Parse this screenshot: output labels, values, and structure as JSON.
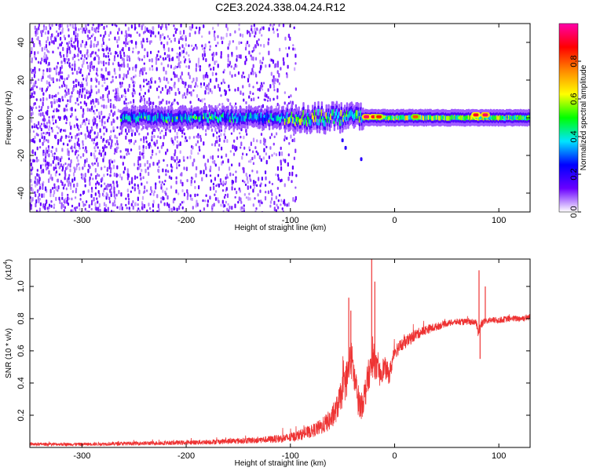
{
  "title": "C2E3.2024.338.04.24.R12",
  "chart_data": [
    {
      "type": "heatmap",
      "xlabel": "Height of straight line (km)",
      "ylabel": "Frequency (Hz)",
      "xlim": [
        -350,
        130
      ],
      "ylim": [
        -50,
        50
      ],
      "x_ticks": [
        -300,
        -200,
        -100,
        0,
        100
      ],
      "x_tick_labels": [
        "-300",
        "-200",
        "-100",
        "0",
        "100"
      ],
      "y_ticks": [
        -40,
        -20,
        0,
        20,
        40
      ],
      "y_tick_labels": [
        "-40",
        "-20",
        "0",
        "20",
        "40"
      ],
      "colorbar": {
        "label": "Normalized spectral amplitude",
        "range": [
          0,
          1
        ],
        "ticks": [
          0.0,
          0.2,
          0.4,
          0.6,
          0.8
        ],
        "tick_labels": [
          "0.0",
          "0.2",
          "0.4",
          "0.6",
          "0.8"
        ],
        "colormap": [
          "#ffffff",
          "#6a00ff",
          "#0000ff",
          "#00e5ff",
          "#00ff00",
          "#ffff00",
          "#ff8800",
          "#ff0000",
          "#ff00aa"
        ]
      },
      "features": {
        "scatter_region_x": [
          -350,
          -105
        ],
        "scatter_density": [
          0.9,
          0.4
        ],
        "signal_band_center_hz": 0,
        "signal_band_start_x": -262,
        "band_segments": [
          {
            "x0": -262,
            "x1": -105,
            "intensity": 0.35,
            "width_hz": 3.5,
            "jitter_hz": 1.5
          },
          {
            "x0": -105,
            "x1": -30,
            "intensity": 0.5,
            "width_hz": 4.0,
            "jitter_hz": 3
          },
          {
            "x0": -30,
            "x1": 130,
            "intensity": 0.55,
            "width_hz": 3.0,
            "jitter_hz": 0.3
          }
        ],
        "hot_spots": [
          {
            "x": -27,
            "y": 0.5,
            "v": 0.95
          },
          {
            "x": -20,
            "y": 0.5,
            "v": 0.9
          },
          {
            "x": -15,
            "y": 0.5,
            "v": 0.85
          },
          {
            "x": 20,
            "y": 0.5,
            "v": 0.8
          },
          {
            "x": 78,
            "y": 1.5,
            "v": 0.9
          },
          {
            "x": 87,
            "y": 1.5,
            "v": 0.95
          }
        ],
        "tail_points": [
          {
            "x": -50,
            "y": -12
          },
          {
            "x": -47,
            "y": -16
          },
          {
            "x": -32,
            "y": -22
          }
        ]
      }
    },
    {
      "type": "line",
      "xlabel": "Height of straight line (km)",
      "ylabel": "SNR (10 * v/v)",
      "y_multiplier_label": "(x10",
      "y_multiplier_exp": "4",
      "xlim": [
        -350,
        130
      ],
      "ylim": [
        0,
        1.17
      ],
      "x_ticks": [
        -300,
        -200,
        -100,
        0,
        100
      ],
      "x_tick_labels": [
        "-300",
        "-200",
        "-100",
        "0",
        "100"
      ],
      "y_ticks": [
        0.2,
        0.4,
        0.6,
        0.8,
        1.0
      ],
      "y_tick_labels": [
        "0.2",
        "0.4",
        "0.6",
        "0.8",
        "1.0"
      ],
      "series": [
        {
          "color": "#ee3333",
          "x": [
            -350,
            -300,
            -250,
            -200,
            -150,
            -120,
            -100,
            -80,
            -70,
            -60,
            -55,
            -50,
            -45,
            -42,
            -40,
            -38,
            -35,
            -32,
            -28,
            -25,
            -22,
            -20,
            -18,
            -15,
            -10,
            -5,
            0,
            10,
            20,
            30,
            40,
            50,
            60,
            70,
            78,
            80,
            83,
            86,
            90,
            100,
            110,
            120,
            130
          ],
          "y": [
            0.02,
            0.02,
            0.025,
            0.03,
            0.04,
            0.05,
            0.06,
            0.1,
            0.13,
            0.18,
            0.25,
            0.35,
            0.45,
            0.55,
            0.5,
            0.4,
            0.3,
            0.25,
            0.35,
            0.45,
            0.5,
            0.55,
            0.5,
            0.45,
            0.5,
            0.45,
            0.6,
            0.65,
            0.7,
            0.73,
            0.75,
            0.77,
            0.78,
            0.78,
            0.78,
            0.72,
            0.76,
            0.78,
            0.79,
            0.79,
            0.8,
            0.8,
            0.81
          ],
          "noise": [
            0.01,
            0.01,
            0.012,
            0.014,
            0.018,
            0.022,
            0.03,
            0.04,
            0.05,
            0.07,
            0.08,
            0.1,
            0.12,
            0.12,
            0.12,
            0.11,
            0.1,
            0.08,
            0.1,
            0.1,
            0.09,
            0.1,
            0.09,
            0.08,
            0.07,
            0.06,
            0.05,
            0.04,
            0.035,
            0.03,
            0.025,
            0.02,
            0.02,
            0.02,
            0.02,
            0.03,
            0.03,
            0.02,
            0.02,
            0.02,
            0.02,
            0.02,
            0.02
          ]
        }
      ],
      "spikes": [
        {
          "x": -44,
          "y": 0.93
        },
        {
          "x": -42,
          "y": 0.85
        },
        {
          "x": -22,
          "y": 1.17
        },
        {
          "x": -19,
          "y": 1.03
        },
        {
          "x": 81,
          "y": 1.1
        },
        {
          "x": 82,
          "y": 0.55
        },
        {
          "x": 87,
          "y": 1.0
        }
      ]
    }
  ]
}
